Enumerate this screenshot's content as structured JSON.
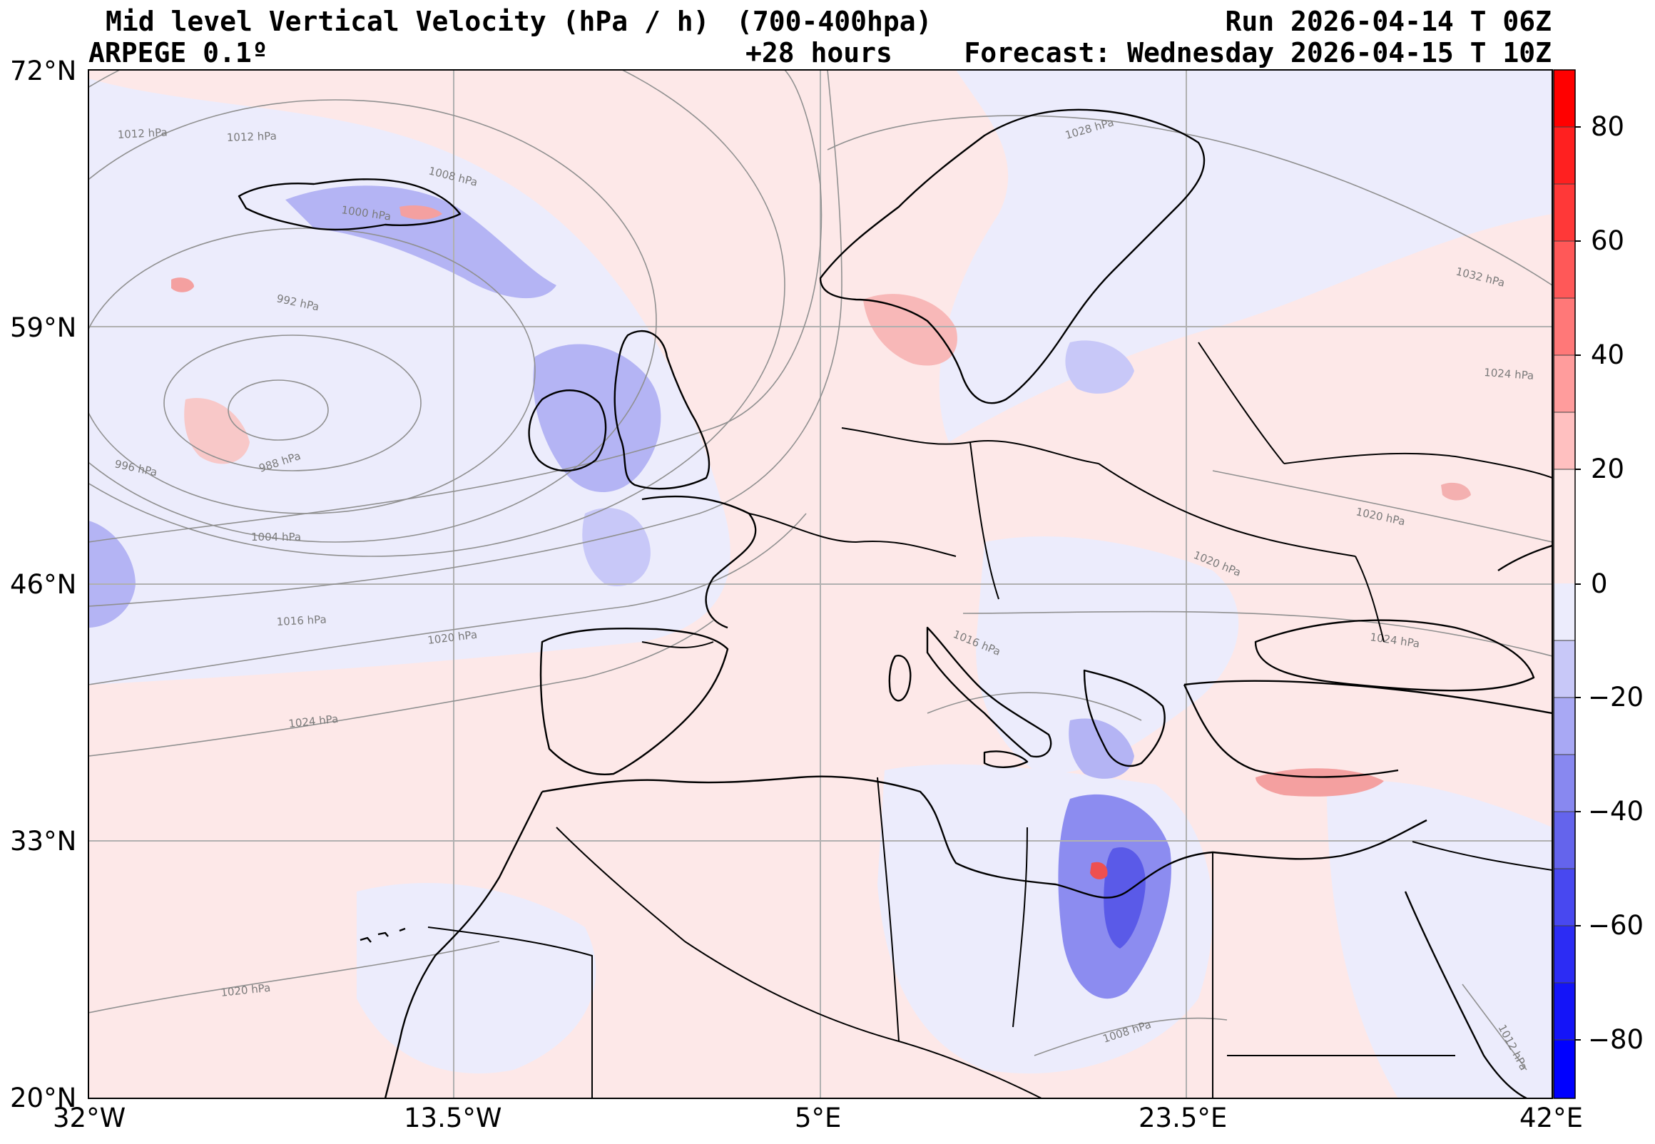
{
  "header": {
    "title": "Mid level Vertical Velocity (hPa / h)",
    "level": "(700-400hpa)",
    "run": "Run 2026-04-14 T 06Z",
    "model": "ARPEGE 0.1º",
    "lead": "+28 hours",
    "forecast": "Forecast: Wednesday 2026-04-15 T 10Z"
  },
  "map": {
    "extent": {
      "lon": [
        -32,
        42
      ],
      "lat": [
        20,
        72
      ]
    },
    "lat_ticks": [
      {
        "value": 72,
        "label": "72°N"
      },
      {
        "value": 59,
        "label": "59°N"
      },
      {
        "value": 46,
        "label": "46°N"
      },
      {
        "value": 33,
        "label": "33°N"
      },
      {
        "value": 20,
        "label": "20°N"
      }
    ],
    "lon_ticks": [
      {
        "value": -32,
        "label": "32°W"
      },
      {
        "value": -13.5,
        "label": "13.5°W"
      },
      {
        "value": 5,
        "label": "5°E"
      },
      {
        "value": 23.5,
        "label": "23.5°E"
      },
      {
        "value": 42,
        "label": "42°E"
      }
    ],
    "isobar_labels": [
      "1012 hPa",
      "1012 hPa",
      "1008 hPa",
      "1000 hPa",
      "992 hPa",
      "988 hPa",
      "996 hPa",
      "1004 hPa",
      "1016 hPa",
      "1020 hPa",
      "1024 hPa",
      "1020 hPa",
      "1028 hPa",
      "1032 hPa",
      "1024 hPa",
      "1020 hPa",
      "1020 hPa",
      "1024 hPa",
      "1016 hPa",
      "1008 hPa",
      "1012 hPa"
    ],
    "colors": {
      "up_motion": "#3030ff",
      "down_motion": "#ff2020",
      "neutral_pos": "#fde8e8",
      "neutral_neg": "#ececfc",
      "coast": "#000000",
      "isobar": "#888888",
      "grid": "#b0b0b0"
    }
  },
  "colorbar": {
    "range": [
      -90,
      90
    ],
    "ticks": [
      {
        "value": 80,
        "label": "80"
      },
      {
        "value": 60,
        "label": "60"
      },
      {
        "value": 40,
        "label": "40"
      },
      {
        "value": 20,
        "label": "20"
      },
      {
        "value": 0,
        "label": "0"
      },
      {
        "value": -20,
        "label": "−20"
      },
      {
        "value": -40,
        "label": "−40"
      },
      {
        "value": -60,
        "label": "−60"
      },
      {
        "value": -80,
        "label": "−80"
      }
    ]
  }
}
